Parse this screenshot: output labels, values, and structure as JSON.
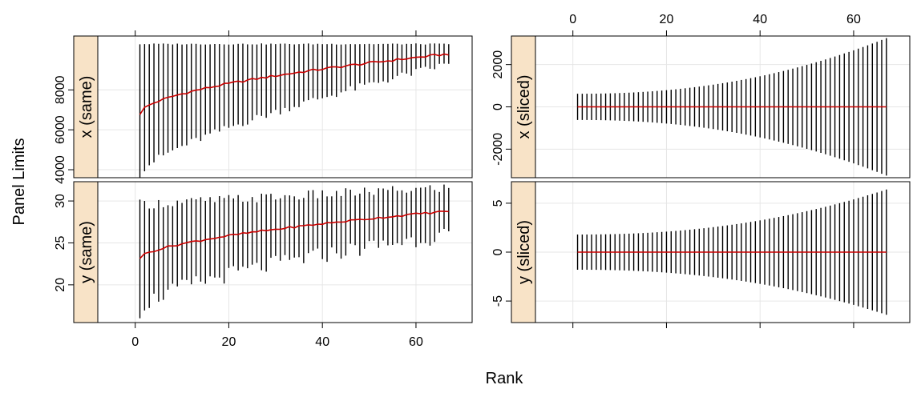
{
  "figure": {
    "xlabel": "Rank",
    "ylabel": "Panel Limits"
  },
  "colors": {
    "strip": "#f8e3c7",
    "grid": "#e6e6e6",
    "bar": "#000000",
    "median": "#cc0000"
  },
  "chart_data": [
    {
      "type": "line",
      "panel": "x-same",
      "strip": "x (same)",
      "xlim": [
        -8,
        72
      ],
      "ylim": [
        3600,
        10700
      ],
      "yticks": [
        4000,
        6000,
        8000
      ],
      "ytick_labels": [
        "4000",
        "6000",
        "8000"
      ],
      "xticks": [
        0,
        20,
        40,
        60
      ],
      "xtick_labels": [],
      "top_xtick_labels": [],
      "n": 67,
      "median_first": 6800,
      "median_last": 9800,
      "lower_first": 3800,
      "lower_last": 9300,
      "upper": 10300
    },
    {
      "type": "line",
      "panel": "x-sliced",
      "strip": "x (sliced)",
      "xlim": [
        -8,
        72
      ],
      "ylim": [
        -3350,
        3350
      ],
      "yticks": [
        -2000,
        0,
        2000
      ],
      "ytick_labels": [
        "-2000",
        "0",
        "2000"
      ],
      "xticks": [
        0,
        20,
        40,
        60
      ],
      "xtick_labels": [],
      "top_xtick_labels": [
        "0",
        "20",
        "40",
        "60"
      ],
      "n": 67,
      "half_first": 620,
      "half_last": 3250
    },
    {
      "type": "line",
      "panel": "y-same",
      "strip": "y (same)",
      "xlim": [
        -8,
        72
      ],
      "ylim": [
        15.5,
        32.3
      ],
      "yticks": [
        20,
        25,
        30
      ],
      "ytick_labels": [
        "20",
        "25",
        "30"
      ],
      "xticks": [
        0,
        20,
        40,
        60
      ],
      "xtick_labels": [
        "0",
        "20",
        "40",
        "60"
      ],
      "top_xtick_labels": [],
      "n": 67,
      "median_first": 23.2,
      "median_last": 28.8,
      "lower_first": 16.9,
      "lower_last": 26.0,
      "upper_first": 29.6,
      "upper_last": 31.6
    },
    {
      "type": "line",
      "panel": "y-sliced",
      "strip": "y (sliced)",
      "xlim": [
        -8,
        72
      ],
      "ylim": [
        -7.2,
        7.2
      ],
      "yticks": [
        -5,
        0,
        5
      ],
      "ytick_labels": [
        "-5",
        "0",
        "5"
      ],
      "xticks": [
        0,
        20,
        40,
        60
      ],
      "xtick_labels": [],
      "top_xtick_labels": [],
      "n": 67,
      "half_first": 1.8,
      "half_last": 6.4
    }
  ]
}
